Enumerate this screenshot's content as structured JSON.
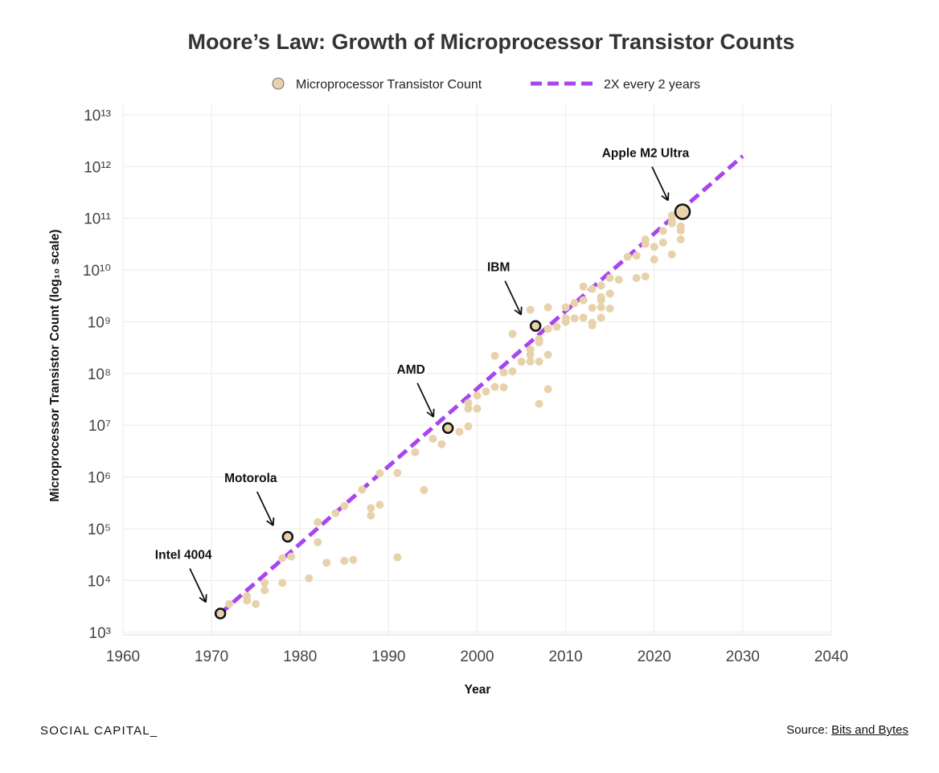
{
  "chart_data": {
    "type": "scatter",
    "title": "Moore’s Law: Growth of Microprocessor Transistor Counts",
    "xlabel": "Year",
    "ylabel": "Microprocessor Transistor Count (log₁₀ scale)",
    "yscale": "log10",
    "xlim": [
      1960,
      2040
    ],
    "ylim_exp": [
      2.95,
      13.2
    ],
    "x_ticks": [
      1960,
      1970,
      1980,
      1990,
      2000,
      2010,
      2020,
      2030,
      2040
    ],
    "y_ticks": [
      {
        "exp": 3,
        "label": "10³"
      },
      {
        "exp": 4,
        "label": "10⁴"
      },
      {
        "exp": 5,
        "label": "10⁵"
      },
      {
        "exp": 6,
        "label": "10⁶"
      },
      {
        "exp": 7,
        "label": "10⁷"
      },
      {
        "exp": 8,
        "label": "10⁸"
      },
      {
        "exp": 9,
        "label": "10⁹"
      },
      {
        "exp": 10,
        "label": "10¹⁰"
      },
      {
        "exp": 11,
        "label": "10¹¹"
      },
      {
        "exp": 12,
        "label": "10¹²"
      },
      {
        "exp": 13,
        "label": "10¹³"
      }
    ],
    "legend": [
      {
        "label": "Microprocessor Transistor Count",
        "kind": "point"
      },
      {
        "label": "2X every 2 years",
        "kind": "dashed-line"
      }
    ],
    "legend_position": "top-center",
    "series": [
      {
        "name": "Microprocessor Transistor Count",
        "color": "#e8d2ab",
        "points": [
          [
            1972,
            3500
          ],
          [
            1974,
            4100
          ],
          [
            1974,
            5000
          ],
          [
            1975,
            3500
          ],
          [
            1976,
            6500
          ],
          [
            1976,
            9000
          ],
          [
            1978,
            9000
          ],
          [
            1978,
            27000
          ],
          [
            1979,
            29000
          ],
          [
            1981,
            11000
          ],
          [
            1982,
            55000
          ],
          [
            1982,
            134000
          ],
          [
            1983,
            22000
          ],
          [
            1984,
            200000
          ],
          [
            1985,
            24000
          ],
          [
            1985,
            275000
          ],
          [
            1986,
            25000
          ],
          [
            1987,
            570000
          ],
          [
            1988,
            180000
          ],
          [
            1988,
            250000
          ],
          [
            1989,
            1180000
          ],
          [
            1989,
            290000
          ],
          [
            1991,
            1200000
          ],
          [
            1991,
            28000
          ],
          [
            1993,
            3000000
          ],
          [
            1994,
            560000
          ],
          [
            1995,
            5500000
          ],
          [
            1996,
            4300000
          ],
          [
            1998,
            7500000
          ],
          [
            1999,
            9500000
          ],
          [
            1999,
            21000000
          ],
          [
            1999,
            27000000
          ],
          [
            2000,
            21000000
          ],
          [
            2000,
            37500000
          ],
          [
            2001,
            45000000
          ],
          [
            2002,
            55000000
          ],
          [
            2002,
            220000000
          ],
          [
            2003,
            105000000
          ],
          [
            2003,
            54000000
          ],
          [
            2004,
            110000000
          ],
          [
            2004,
            580000000
          ],
          [
            2005,
            169000000
          ],
          [
            2006,
            230000000
          ],
          [
            2006,
            291000000
          ],
          [
            2006,
            1700000000
          ],
          [
            2006,
            170000000
          ],
          [
            2007,
            170000000
          ],
          [
            2007,
            26000000
          ],
          [
            2007,
            400000000
          ],
          [
            2007,
            463000000
          ],
          [
            2008,
            50000000
          ],
          [
            2008,
            230000000
          ],
          [
            2008,
            730000000
          ],
          [
            2008,
            1900000000
          ],
          [
            2009,
            800000000
          ],
          [
            2010,
            1170000000
          ],
          [
            2010,
            1900000000
          ],
          [
            2010,
            1000000000
          ],
          [
            2011,
            2300000000
          ],
          [
            2011,
            1160000000
          ],
          [
            2012,
            2600000000
          ],
          [
            2012,
            4800000000
          ],
          [
            2012,
            1200000000
          ],
          [
            2013,
            4300000000
          ],
          [
            2013,
            1860000000
          ],
          [
            2013,
            950000000
          ],
          [
            2013,
            850000000
          ],
          [
            2014,
            5000000000
          ],
          [
            2014,
            2600000000
          ],
          [
            2014,
            1900000000
          ],
          [
            2014,
            3000000000
          ],
          [
            2014,
            1200000000
          ],
          [
            2015,
            7000000000
          ],
          [
            2015,
            3500000000
          ],
          [
            2015,
            1800000000
          ],
          [
            2016,
            6500000000
          ],
          [
            2017,
            18000000000
          ],
          [
            2018,
            7000000000
          ],
          [
            2018,
            19000000000
          ],
          [
            2019,
            7500000000
          ],
          [
            2019,
            32000000000
          ],
          [
            2019,
            39000000000
          ],
          [
            2020,
            16000000000
          ],
          [
            2020,
            28000000000
          ],
          [
            2021,
            57000000000
          ],
          [
            2021,
            34000000000
          ],
          [
            2022,
            20000000000
          ],
          [
            2022,
            80000000000
          ],
          [
            2022,
            114000000000
          ],
          [
            2022,
            90000000000
          ],
          [
            2023,
            70000000000
          ],
          [
            2023,
            58000000000
          ],
          [
            2023,
            39000000000
          ]
        ]
      },
      {
        "name": "2X every 2 years",
        "color": "#a746ef",
        "style": "dashed",
        "line": [
          [
            1971,
            2300
          ],
          [
            2030,
            1600000000000
          ]
        ]
      }
    ],
    "highlights": [
      {
        "label": "Intel 4004",
        "x": 1971,
        "y": 2300,
        "size": "normal",
        "label_dir": "up-left"
      },
      {
        "label": "Motorola",
        "x": 1978.6,
        "y": 70000,
        "size": "normal",
        "label_dir": "up-left"
      },
      {
        "label": "AMD",
        "x": 1996.7,
        "y": 8800000,
        "size": "normal",
        "label_dir": "up-left"
      },
      {
        "label": "IBM",
        "x": 2006.6,
        "y": 830000000,
        "size": "normal",
        "label_dir": "up-left"
      },
      {
        "label": "Apple M2 Ultra",
        "x": 2023.2,
        "y": 134000000000,
        "size": "large",
        "label_dir": "up-left"
      }
    ]
  },
  "footer": {
    "brand": "SOCIAL CAPITAL_",
    "source_prefix": "Source: ",
    "source_link": "Bits and Bytes"
  }
}
